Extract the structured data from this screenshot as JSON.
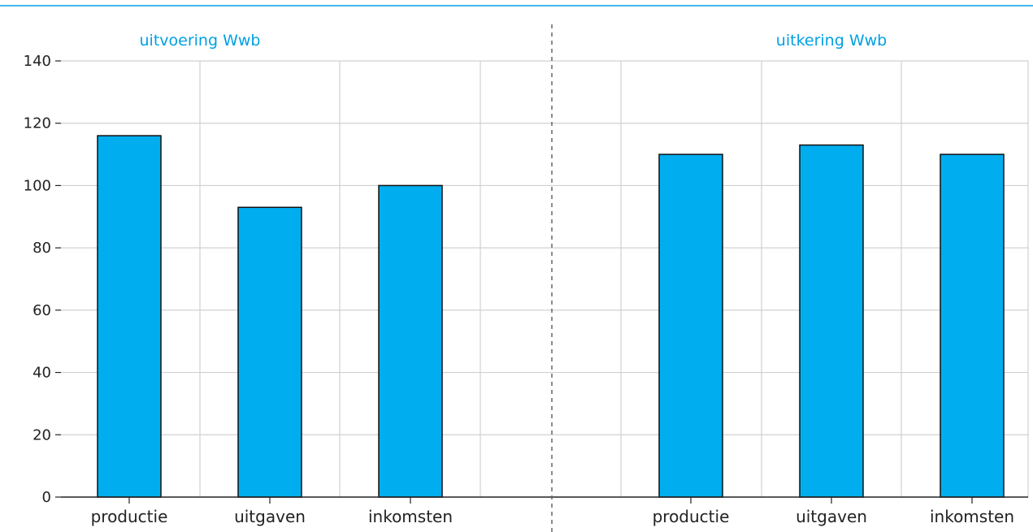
{
  "chart_data": {
    "type": "bar",
    "ylim": [
      0,
      140
    ],
    "yticks": [
      0,
      20,
      40,
      60,
      80,
      100,
      120,
      140
    ],
    "grid": true,
    "panels": [
      {
        "title": "uitvoering Wwb",
        "categories": [
          "productie",
          "uitgaven",
          "inkomsten"
        ],
        "values": [
          116,
          93,
          100
        ]
      },
      {
        "title": "uitkering Wwb",
        "categories": [
          "productie",
          "uitgaven",
          "inkomsten"
        ],
        "values": [
          110,
          113,
          110
        ]
      }
    ]
  },
  "colors": {
    "bar": "#00aeef",
    "bar_outline": "#111111",
    "title": "#00a0e3",
    "top_rule": "#00a0e3",
    "grid": "#d0d0d0",
    "axis": "#222222",
    "divider": "#666666"
  }
}
